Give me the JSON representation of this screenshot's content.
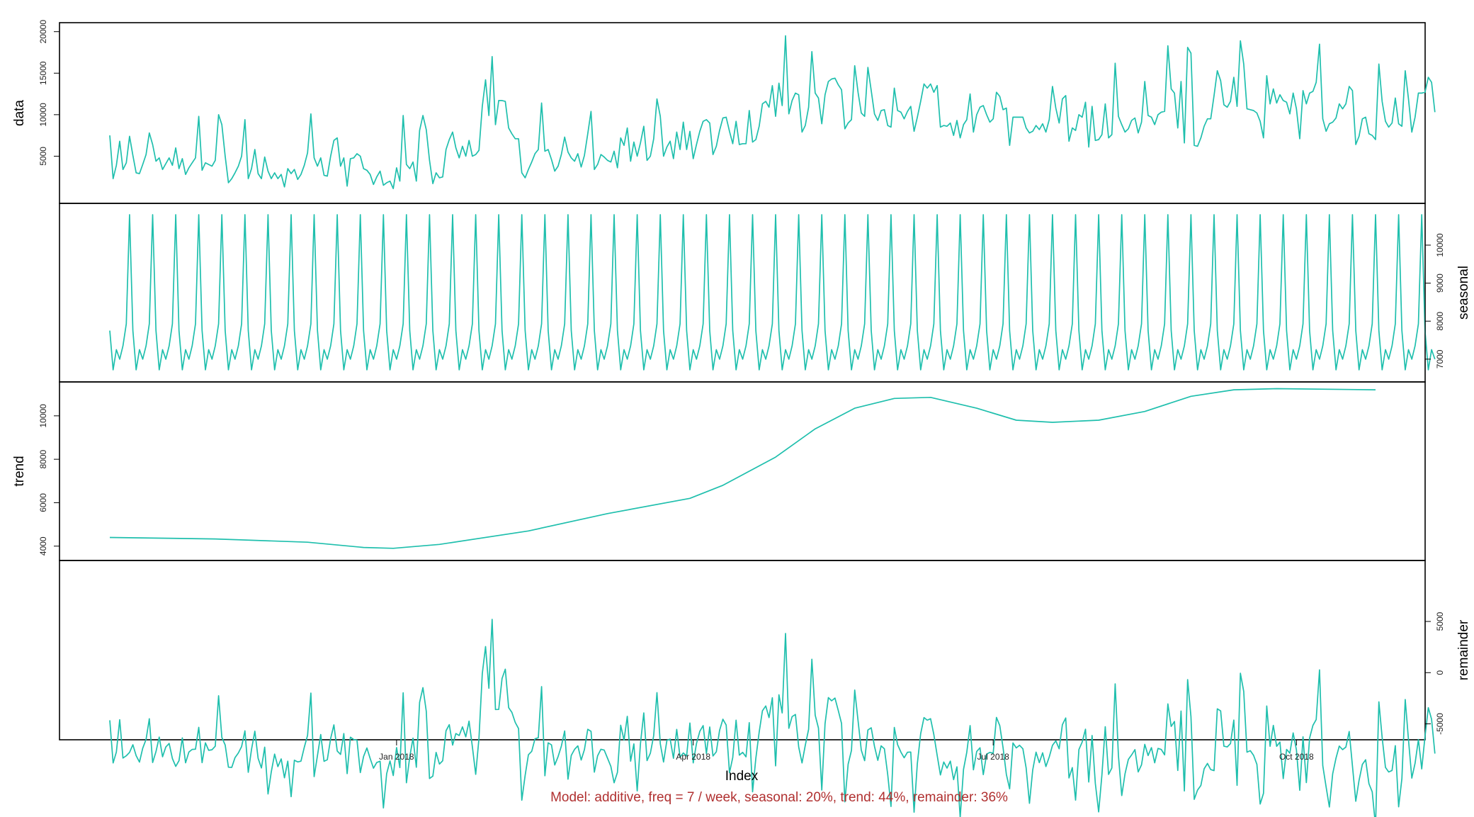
{
  "chart_data": {
    "type": "line",
    "xlabel": "Index",
    "caption": "Model: additive, freq = 7 / week, seasonal: 20%, trend: 44%, remainder: 36%",
    "colors": {
      "line": "#1fbfad",
      "caption": "#b03030",
      "frame": "#000000"
    },
    "x_range": [
      "2017-10-06",
      "2018-10-25"
    ],
    "x_ticks": [
      {
        "date": "2018-01-01",
        "label": "Jan 2018"
      },
      {
        "date": "2018-04-01",
        "label": "Apr 2018"
      },
      {
        "date": "2018-07-01",
        "label": "Jul 2018"
      },
      {
        "date": "2018-10-01",
        "label": "Oct 2018"
      }
    ],
    "panels": [
      {
        "name": "data",
        "ylabel": "data",
        "label_side": "left",
        "ylim": [
          0,
          20400
        ],
        "yticks": [
          5000,
          10000,
          15000,
          20000
        ],
        "start": "2017-10-06",
        "values": [
          7500,
          2300,
          3900,
          6800,
          3400,
          4200,
          7400,
          5100,
          3000,
          2900,
          4000,
          5200,
          7800,
          6400,
          4400,
          4800,
          3400,
          4100,
          4800,
          3900,
          6000,
          3500,
          4700,
          2800,
          3600,
          4200,
          4800,
          9800,
          3300,
          4200,
          4000,
          3800,
          4500,
          10000,
          8800,
          5000,
          1800,
          2300,
          3000,
          3800,
          5000,
          9400,
          2300,
          3500,
          5800,
          2900,
          2300,
          4900,
          3200,
          2300,
          3000,
          2300,
          2800,
          1300,
          3500,
          2900,
          3400,
          2200,
          2800,
          3900,
          5400,
          10100,
          4800,
          3800,
          4800,
          2700,
          2600,
          5000,
          6900,
          7200,
          3800,
          4800,
          1400,
          4700,
          4800,
          5300,
          5000,
          3500,
          3300,
          2800,
          1600,
          2500,
          3200,
          1500,
          1800,
          2000,
          1100,
          3600,
          2000,
          9900,
          4000,
          3500,
          4300,
          2000,
          8100,
          9900,
          8200,
          4500,
          1700,
          3000,
          2400,
          2500,
          5800,
          7000,
          7900,
          6000,
          4800,
          6200,
          5000,
          6900,
          5000,
          5200,
          5700,
          11000,
          14200,
          9900,
          17000,
          8800,
          11700,
          11700,
          11600,
          8400,
          7700,
          7100,
          7100,
          3000,
          2400,
          3400,
          4300,
          5300,
          5800,
          11400,
          5600,
          5800,
          4600,
          3200,
          3800,
          5200,
          7300,
          5500,
          4800,
          4400,
          5300,
          3700,
          5100,
          7700,
          10400,
          3400,
          4000,
          5200,
          4900,
          4500,
          4300,
          5600,
          3600,
          7200,
          6300,
          8400,
          4400,
          6700,
          5000,
          6600,
          8600,
          4500,
          5000,
          7100,
          11900,
          9800,
          5000,
          6100,
          6800,
          4700,
          7900,
          5800,
          9100,
          5800,
          8000,
          4700,
          6400,
          8000,
          9200,
          9400,
          9000,
          5200,
          6200,
          8100,
          9600,
          9700,
          8000,
          6500,
          9200,
          6400,
          6500,
          6500,
          10500,
          6700,
          7000,
          8600,
          11300,
          11600,
          10900,
          13500,
          9800,
          13800,
          11100,
          19500,
          10100,
          11700,
          12600,
          12400,
          7900,
          8700,
          10900,
          17600,
          12600,
          12000,
          8900,
          12400,
          14000,
          14300,
          14400,
          13600,
          13000,
          8300,
          9000,
          9400,
          15900,
          12700,
          10200,
          9800,
          15700,
          12900,
          10100,
          9300,
          10500,
          10600,
          8700,
          8500,
          13200,
          10500,
          10300,
          9500,
          10400,
          11000,
          8000,
          9700,
          11600,
          13700,
          13200,
          13700,
          12700,
          13500,
          8500,
          8700,
          8600,
          9000,
          7500,
          9300,
          7200,
          8800,
          9400,
          12500,
          7900,
          10000,
          10900,
          11100,
          10000,
          9100,
          9500,
          12700,
          12200,
          10600,
          10800,
          6300,
          9700,
          9700,
          9700,
          9700,
          8400,
          7800,
          8000,
          8700,
          8200,
          8900,
          7900,
          9400,
          13400,
          10800,
          9000,
          11900,
          12300,
          6800,
          8400,
          8100,
          10000,
          9700,
          11500,
          6100,
          11000,
          6900,
          7000,
          7600,
          11300,
          7200,
          7600,
          16200,
          9800,
          8800,
          7900,
          8300,
          9300,
          9600,
          7800,
          9100,
          14000,
          9900,
          9700,
          8800,
          10000,
          10300,
          10400,
          18300,
          13100,
          12600,
          8400,
          14000,
          6600,
          18100,
          17400,
          6300,
          6200,
          7200,
          8600,
          9500,
          9500,
          12300,
          15300,
          14100,
          11200,
          10900,
          11600,
          14500,
          11000,
          18900,
          16100,
          10700,
          10600,
          10500,
          10200,
          9200,
          7200,
          14700,
          11300,
          13100,
          11400,
          12400,
          11700,
          11500,
          10100,
          12600,
          10700,
          7100,
          12900,
          11300,
          12600,
          12800,
          13900,
          18500,
          9500,
          8000,
          8900,
          9100,
          9600,
          11300,
          10700,
          11300,
          13400,
          12900,
          6400,
          7400,
          9500,
          9700,
          7700,
          7500,
          7000,
          16100,
          11600,
          9200,
          8500,
          9000,
          12000,
          8900,
          8600,
          15300,
          11900,
          7900,
          9700,
          12600,
          12600,
          12700,
          14500,
          13900,
          10300
        ]
      },
      {
        "name": "seasonal",
        "ylabel": "seasonal",
        "label_side": "right",
        "ylim": [
          6550,
          10950
        ],
        "yticks": [
          7000,
          8000,
          9000,
          10000
        ],
        "start": "2017-10-06",
        "period_pattern": [
          7750,
          6720,
          7250,
          7000,
          7350,
          7930,
          10800
        ],
        "periods": 56
      },
      {
        "name": "trend",
        "ylabel": "trend",
        "label_side": "left",
        "ylim": [
          3600,
          11300
        ],
        "yticks": [
          4000,
          6000,
          8000,
          10000
        ],
        "points": [
          {
            "date": "2017-10-06",
            "value": 4400
          },
          {
            "date": "2017-11-07",
            "value": 4330
          },
          {
            "date": "2017-12-05",
            "value": 4180
          },
          {
            "date": "2017-12-22",
            "value": 3940
          },
          {
            "date": "2017-12-31",
            "value": 3900
          },
          {
            "date": "2018-01-14",
            "value": 4080
          },
          {
            "date": "2018-02-10",
            "value": 4700
          },
          {
            "date": "2018-03-06",
            "value": 5500
          },
          {
            "date": "2018-03-31",
            "value": 6200
          },
          {
            "date": "2018-04-10",
            "value": 6800
          },
          {
            "date": "2018-04-26",
            "value": 8100
          },
          {
            "date": "2018-05-08",
            "value": 9400
          },
          {
            "date": "2018-05-20",
            "value": 10350
          },
          {
            "date": "2018-06-01",
            "value": 10800
          },
          {
            "date": "2018-06-12",
            "value": 10850
          },
          {
            "date": "2018-06-26",
            "value": 10350
          },
          {
            "date": "2018-07-08",
            "value": 9800
          },
          {
            "date": "2018-07-19",
            "value": 9700
          },
          {
            "date": "2018-08-02",
            "value": 9800
          },
          {
            "date": "2018-08-16",
            "value": 10200
          },
          {
            "date": "2018-08-30",
            "value": 10900
          },
          {
            "date": "2018-09-12",
            "value": 11200
          },
          {
            "date": "2018-09-25",
            "value": 11250
          },
          {
            "date": "2018-10-25",
            "value": 11200
          }
        ]
      },
      {
        "name": "remainder",
        "ylabel": "remainder",
        "label_side": "right",
        "ylim": [
          -6000,
          10400
        ],
        "yticks": [
          -5000,
          0,
          5000
        ]
      }
    ]
  }
}
